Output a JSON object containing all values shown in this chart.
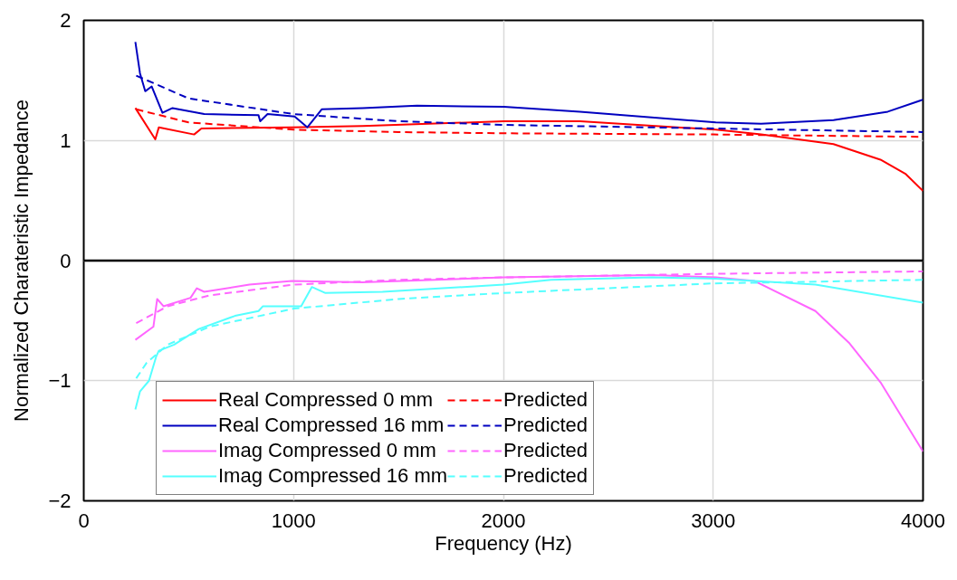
{
  "chart_data": {
    "type": "line",
    "xlabel": "Frequency (Hz)",
    "ylabel": "Normalized Charateristic Impedance",
    "xlim": [
      0,
      4000
    ],
    "xticks": [
      0,
      1000,
      2000,
      3000,
      4000
    ],
    "ylim": [
      -2,
      2
    ],
    "yticks": [
      -2,
      -1,
      0,
      1,
      2
    ],
    "grid": true,
    "legend": "bottom left",
    "marker": "none",
    "ref_lines": [
      {
        "axis": "y",
        "value": 0,
        "color": "#000000"
      }
    ],
    "series": [
      {
        "name": "Real Compressed 0 mm",
        "color": "#ff0000",
        "line_style": "solid",
        "x": [
          246,
          341,
          358,
          526,
          561,
          992,
          1329,
          2002,
          2365,
          3012,
          3228,
          3573,
          3797,
          3918,
          4000
        ],
        "values": [
          1.27,
          1.01,
          1.11,
          1.05,
          1.1,
          1.11,
          1.12,
          1.16,
          1.16,
          1.09,
          1.05,
          0.97,
          0.84,
          0.72,
          0.58
        ]
      },
      {
        "name": "Predicted",
        "color": "#ff0000",
        "line_style": "dashed",
        "x": [
          250,
          500,
          1000,
          1500,
          2000,
          3000,
          4000
        ],
        "values": [
          1.26,
          1.15,
          1.09,
          1.07,
          1.06,
          1.05,
          1.03
        ]
      },
      {
        "name": "Real Compressed 16 mm",
        "color": "#0000c0",
        "line_style": "solid",
        "x": [
          246,
          268,
          293,
          324,
          375,
          423,
          574,
          833,
          841,
          876,
          1005,
          1066,
          1135,
          1329,
          1588,
          2002,
          2365,
          3012,
          3228,
          3573,
          3832,
          4000
        ],
        "values": [
          1.82,
          1.56,
          1.41,
          1.45,
          1.23,
          1.27,
          1.22,
          1.21,
          1.16,
          1.22,
          1.2,
          1.11,
          1.26,
          1.27,
          1.29,
          1.28,
          1.24,
          1.15,
          1.14,
          1.17,
          1.24,
          1.34
        ]
      },
      {
        "name": "Predicted",
        "color": "#0000c0",
        "line_style": "dashed",
        "x": [
          250,
          500,
          1000,
          1500,
          2000,
          3000,
          4000
        ],
        "values": [
          1.54,
          1.35,
          1.22,
          1.16,
          1.13,
          1.1,
          1.07
        ]
      },
      {
        "name": "Imag Compressed 0 mm",
        "color": "#ff66ff",
        "line_style": "solid",
        "x": [
          246,
          332,
          350,
          380,
          509,
          539,
          574,
          790,
          992,
          1329,
          2002,
          2710,
          3012,
          3197,
          3487,
          3650,
          3800,
          4000
        ],
        "values": [
          -0.66,
          -0.55,
          -0.32,
          -0.38,
          -0.31,
          -0.23,
          -0.26,
          -0.2,
          -0.17,
          -0.18,
          -0.14,
          -0.12,
          -0.14,
          -0.17,
          -0.42,
          -0.69,
          -1.02,
          -1.59
        ]
      },
      {
        "name": "Predicted",
        "color": "#ff66ff",
        "line_style": "dashed",
        "x": [
          250,
          400,
          600,
          1000,
          1500,
          2000,
          3000,
          4000
        ],
        "values": [
          -0.52,
          -0.38,
          -0.29,
          -0.2,
          -0.16,
          -0.14,
          -0.11,
          -0.09
        ]
      },
      {
        "name": "Imag Compressed 16 mm",
        "color": "#55ffff",
        "line_style": "solid",
        "x": [
          246,
          268,
          311,
          345,
          358,
          431,
          548,
          721,
          833,
          854,
          1036,
          1087,
          1152,
          1424,
          2002,
          2227,
          2710,
          3012,
          3487,
          4000
        ],
        "values": [
          -1.24,
          -1.09,
          -1.0,
          -0.8,
          -0.75,
          -0.7,
          -0.57,
          -0.46,
          -0.42,
          -0.38,
          -0.38,
          -0.22,
          -0.27,
          -0.26,
          -0.2,
          -0.16,
          -0.14,
          -0.15,
          -0.2,
          -0.35
        ]
      },
      {
        "name": "Predicted",
        "color": "#55ffff",
        "line_style": "dashed",
        "x": [
          250,
          300,
          400,
          600,
          1000,
          1500,
          2000,
          3000,
          4000
        ],
        "values": [
          -0.98,
          -0.85,
          -0.7,
          -0.55,
          -0.4,
          -0.32,
          -0.27,
          -0.19,
          -0.16
        ]
      }
    ]
  }
}
